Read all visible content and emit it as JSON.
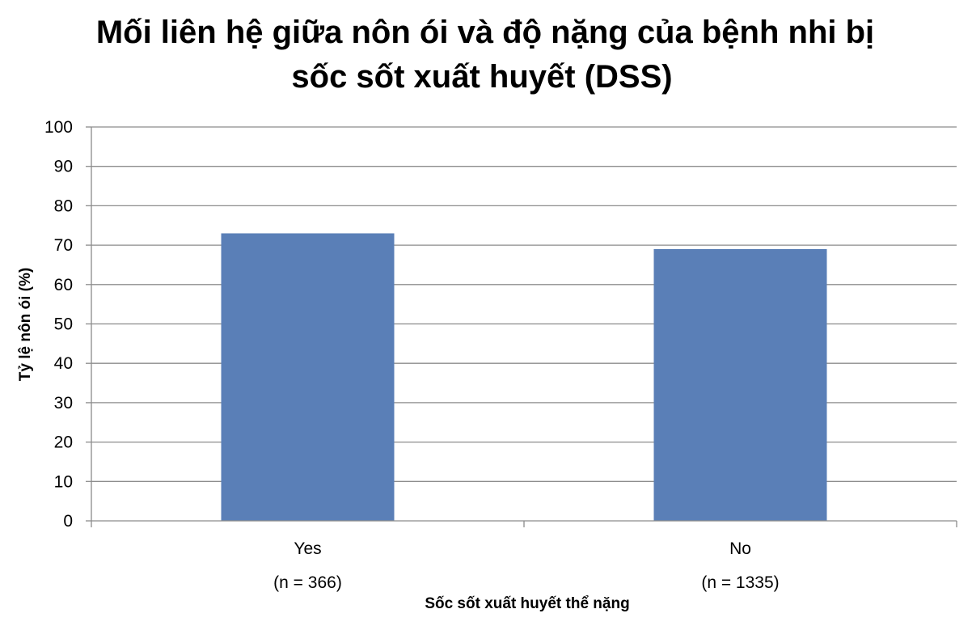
{
  "chart_data": {
    "type": "bar",
    "title_lines": [
      "Mối liên hệ giữa nôn ói và độ nặng của bệnh nhi bị",
      "sốc sốt xuất huyết (DSS)"
    ],
    "categories": [
      "Yes",
      "No"
    ],
    "category_sublabels": [
      "(n = 366)",
      "(n = 1335)"
    ],
    "values": [
      73,
      69
    ],
    "xlabel": "Sốc sốt xuất huyết thể nặng",
    "ylabel": "Tỷ lệ nôn ói (%)",
    "ylim": [
      0,
      100
    ],
    "yticks": [
      "0",
      "10",
      "20",
      "30",
      "40",
      "50",
      "60",
      "70",
      "80",
      "90",
      "100"
    ],
    "grid": true,
    "legend": "none",
    "bar_color": "#5A7FB7",
    "grid_color": "#8C8C8C"
  }
}
